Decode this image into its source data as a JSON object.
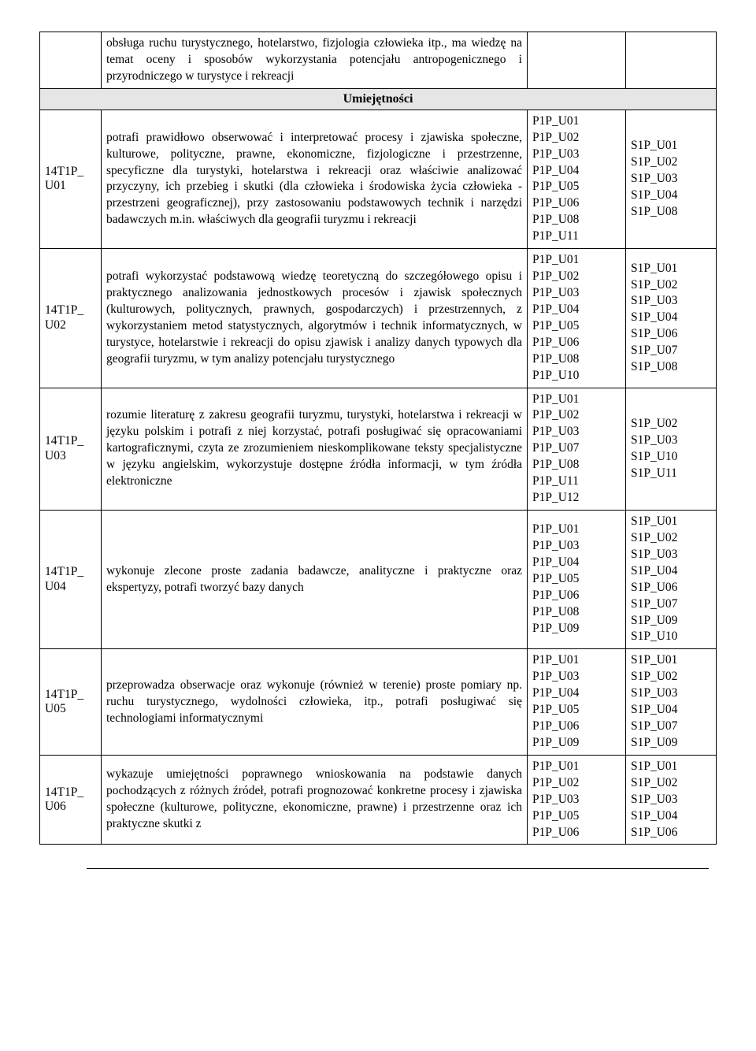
{
  "section_header": "Umiejętności",
  "row0": {
    "desc": "obsługa ruchu turystycznego, hotelarstwo, fizjologia człowieka itp., ma wiedzę na temat oceny i sposobów wykorzystania potencjału antropogenicznego i przyrodniczego w turystyce i rekreacji"
  },
  "rows": {
    "u01": {
      "code": "14T1P_U01",
      "desc": "potrafi prawidłowo obserwować i interpretować procesy i zjawiska społeczne, kulturowe, polityczne, prawne, ekonomiczne, fizjologiczne i przestrzenne, specyficzne dla turystyki, hotelarstwa i rekreacji oraz właściwie analizować przyczyny, ich przebieg i skutki (dla człowieka i środowiska życia człowieka - przestrzeni geograficznej), przy zastosowaniu podstawowych technik i narzędzi badawczych m.in. właściwych dla geografii turyzmu i rekreacji",
      "p1p": [
        "P1P_U01",
        "P1P_U02",
        "P1P_U03",
        "P1P_U04",
        "P1P_U05",
        "P1P_U06",
        "P1P_U08",
        "P1P_U11"
      ],
      "s1p": [
        "S1P_U01",
        "S1P_U02",
        "S1P_U03",
        "S1P_U04",
        "S1P_U08"
      ]
    },
    "u02": {
      "code": "14T1P_U02",
      "desc": "potrafi wykorzystać podstawową wiedzę teoretyczną do szczegółowego opisu i praktycznego analizowania jednostkowych procesów i zjawisk społecznych (kulturowych, politycznych, prawnych, gospodarczych) i przestrzennych, z wykorzystaniem metod statystycznych, algorytmów i technik informatycznych, w turystyce, hotelarstwie i rekreacji do opisu zjawisk i analizy danych typowych dla geografii turyzmu, w tym analizy potencjału turystycznego",
      "p1p": [
        "P1P_U01",
        "P1P_U02",
        "P1P_U03",
        "P1P_U04",
        "P1P_U05",
        "P1P_U06",
        "P1P_U08",
        "P1P_U10"
      ],
      "s1p": [
        "S1P_U01",
        "S1P_U02",
        "S1P_U03",
        "S1P_U04",
        "S1P_U06",
        "S1P_U07",
        "S1P_U08"
      ]
    },
    "u03": {
      "code": "14T1P_U03",
      "desc": "rozumie literaturę z zakresu geografii turyzmu, turystyki, hotelarstwa i rekreacji w języku polskim i potrafi z niej korzystać, potrafi posługiwać się opracowaniami kartograficznymi, czyta ze zrozumieniem nieskomplikowane teksty specjalistyczne w języku angielskim, wykorzystuje dostępne źródła informacji, w tym źródła elektroniczne",
      "p1p": [
        "P1P_U01",
        "P1P_U02",
        "P1P_U03",
        "P1P_U07",
        "P1P_U08",
        "P1P_U11",
        "P1P_U12"
      ],
      "s1p": [
        "S1P_U02",
        "S1P_U03",
        "S1P_U10",
        "S1P_U11"
      ]
    },
    "u04": {
      "code": "14T1P_U04",
      "desc": "wykonuje zlecone proste zadania badawcze, analityczne i praktyczne oraz ekspertyzy, potrafi tworzyć bazy danych",
      "p1p": [
        "P1P_U01",
        "P1P_U03",
        "P1P_U04",
        "P1P_U05",
        "P1P_U06",
        "P1P_U08",
        "P1P_U09"
      ],
      "s1p": [
        "S1P_U01",
        "S1P_U02",
        "S1P_U03",
        "S1P_U04",
        "S1P_U06",
        "S1P_U07",
        "S1P_U09",
        "S1P_U10"
      ]
    },
    "u05": {
      "code": "14T1P_U05",
      "desc": "przeprowadza obserwacje oraz wykonuje (również w terenie) proste pomiary np. ruchu turystycznego, wydolności człowieka, itp., potrafi posługiwać się technologiami informatycznymi",
      "p1p": [
        "P1P_U01",
        "P1P_U03",
        "P1P_U04",
        "P1P_U05",
        "P1P_U06",
        "P1P_U09"
      ],
      "s1p": [
        "S1P_U01",
        "S1P_U02",
        "S1P_U03",
        "S1P_U04",
        "S1P_U07",
        "S1P_U09"
      ]
    },
    "u06": {
      "code": "14T1P_U06",
      "desc": "wykazuje umiejętności poprawnego wnioskowania na podstawie danych pochodzących z różnych źródeł, potrafi prognozować konkretne procesy i zjawiska społeczne (kulturowe, polityczne, ekonomiczne, prawne) i przestrzenne oraz ich praktyczne skutki z",
      "p1p": [
        "P1P_U01",
        "P1P_U02",
        "P1P_U03",
        "P1P_U05",
        "P1P_U06"
      ],
      "s1p": [
        "S1P_U01",
        "S1P_U02",
        "S1P_U03",
        "S1P_U04",
        "S1P_U06"
      ]
    }
  }
}
